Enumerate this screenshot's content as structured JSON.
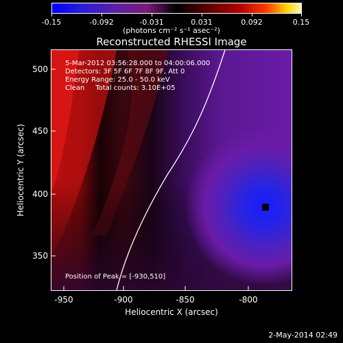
{
  "colorbar": {
    "tick_labels": [
      "-0.15",
      "-0.092",
      "-0.031",
      "0.031",
      "0.092",
      "0.15"
    ],
    "unit_label": "(photons cm⁻² s⁻¹ asec⁻²)"
  },
  "plot": {
    "title": "Reconstructed RHESSI Image",
    "annotation": {
      "time": "5-Mar-2012 03:56:28.000 to 04:00:06.000",
      "detectors": "Detectors: 3F 5F 6F 7F 8F 9F, Att 0",
      "energy": "Energy Range: 25.0 - 50.0 keV",
      "clean": "Clean     Total counts: 3.10E+05",
      "peak": "Position of Peak = [-930,510]"
    },
    "x_axis": {
      "title": "Heliocentric X (arcsec)",
      "ticks": [
        "-950",
        "-900",
        "-850",
        "-800"
      ],
      "range": [
        -965,
        -810
      ]
    },
    "y_axis": {
      "title": "Heliocentric Y (arcsec)",
      "ticks": [
        "500",
        "450",
        "400",
        "350"
      ],
      "range": [
        322,
        512
      ]
    },
    "colors": {
      "limb_line": "#ffffff",
      "peak_marker": "#000000"
    }
  },
  "footer": {
    "timestamp": "2-May-2014 02:49"
  }
}
